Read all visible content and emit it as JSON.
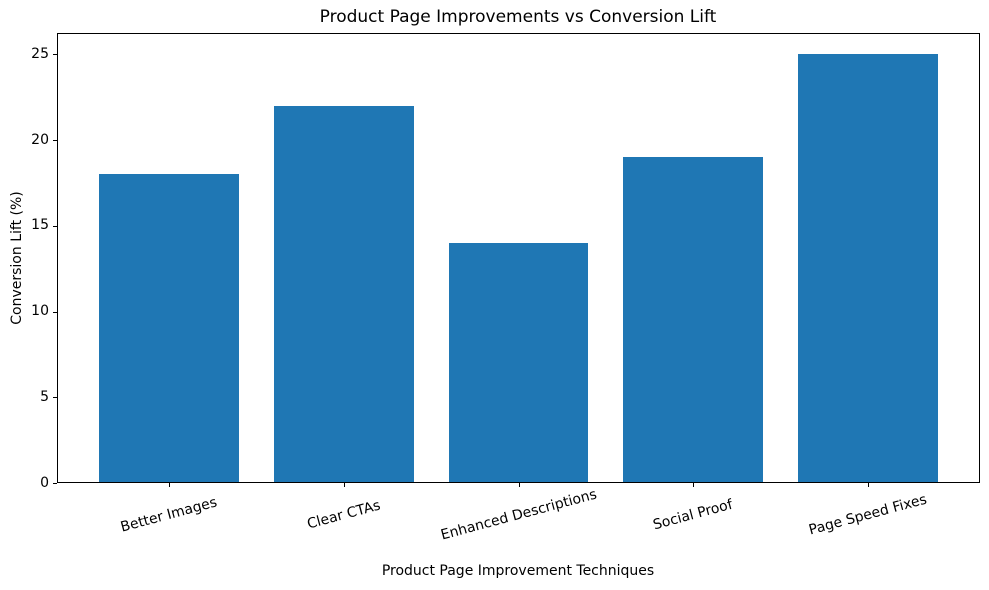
{
  "chart_data": {
    "type": "bar",
    "title": "Product Page Improvements vs Conversion Lift",
    "xlabel": "Product Page Improvement Techniques",
    "ylabel": "Conversion Lift (%)",
    "categories": [
      "Better Images",
      "Clear CTAs",
      "Enhanced Descriptions",
      "Social Proof",
      "Page Speed Fixes"
    ],
    "values": [
      18,
      22,
      14,
      19,
      25
    ],
    "yticks": [
      0,
      5,
      10,
      15,
      20,
      25
    ],
    "ylim": [
      0,
      26.25
    ],
    "bar_color": "#1f77b4",
    "grid": false,
    "legend": "none",
    "x_tick_label_rotation_deg": 15
  }
}
